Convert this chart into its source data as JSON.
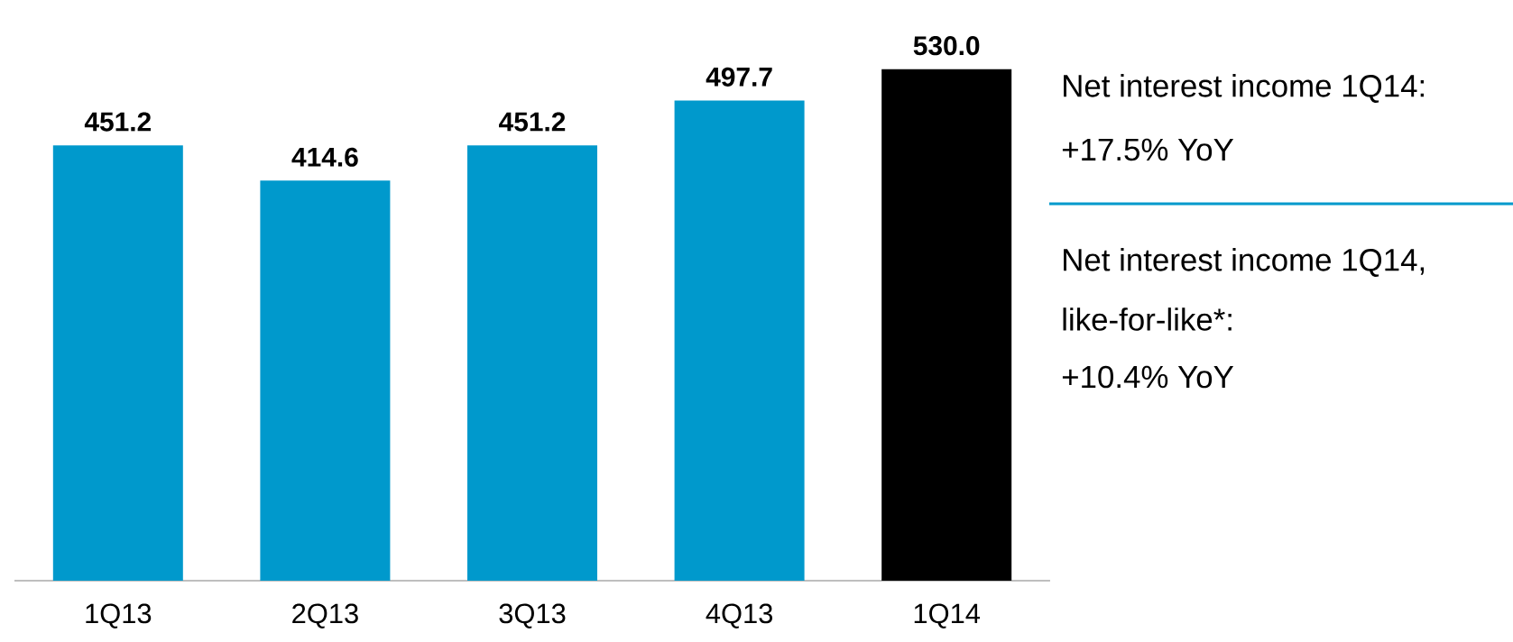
{
  "chart_data": {
    "type": "bar",
    "categories": [
      "1Q13",
      "2Q13",
      "3Q13",
      "4Q13",
      "1Q14"
    ],
    "values": [
      451.2,
      414.6,
      451.2,
      497.7,
      530.0
    ],
    "colors": [
      "#0099cc",
      "#0099cc",
      "#0099cc",
      "#0099cc",
      "#000000"
    ],
    "value_labels": [
      "451.2",
      "414.6",
      "451.2",
      "497.7",
      "530.0"
    ],
    "annotations": [
      "Net interest income 1Q14:",
      "+17.5% YoY",
      "Net interest income 1Q14,",
      "like-for-like*:",
      "+10.4% YoY"
    ]
  }
}
